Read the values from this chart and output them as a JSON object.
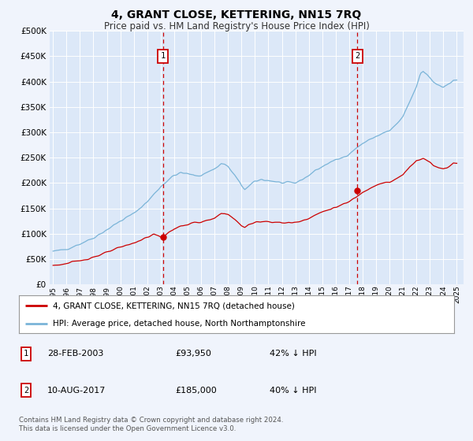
{
  "title": "4, GRANT CLOSE, KETTERING, NN15 7RQ",
  "subtitle": "Price paid vs. HM Land Registry's House Price Index (HPI)",
  "ytick_values": [
    0,
    50000,
    100000,
    150000,
    200000,
    250000,
    300000,
    350000,
    400000,
    450000,
    500000
  ],
  "ylim": [
    0,
    500000
  ],
  "xlim_start": 1994.75,
  "xlim_end": 2025.5,
  "xtick_years": [
    1995,
    1996,
    1997,
    1998,
    1999,
    2000,
    2001,
    2002,
    2003,
    2004,
    2005,
    2006,
    2007,
    2008,
    2009,
    2010,
    2011,
    2012,
    2013,
    2014,
    2015,
    2016,
    2017,
    2018,
    2019,
    2020,
    2021,
    2022,
    2023,
    2024,
    2025
  ],
  "hpi_color": "#7ab4d8",
  "property_color": "#cc0000",
  "background_color": "#f0f4fc",
  "plot_bg_color": "#dce8f8",
  "grid_color": "#ffffff",
  "sale1_year": 2003.16,
  "sale1_price": 93950,
  "sale2_year": 2017.61,
  "sale2_price": 185000,
  "legend_line1": "4, GRANT CLOSE, KETTERING, NN15 7RQ (detached house)",
  "legend_line2": "HPI: Average price, detached house, North Northamptonshire",
  "footer": "Contains HM Land Registry data © Crown copyright and database right 2024.\nThis data is licensed under the Open Government Licence v3.0."
}
